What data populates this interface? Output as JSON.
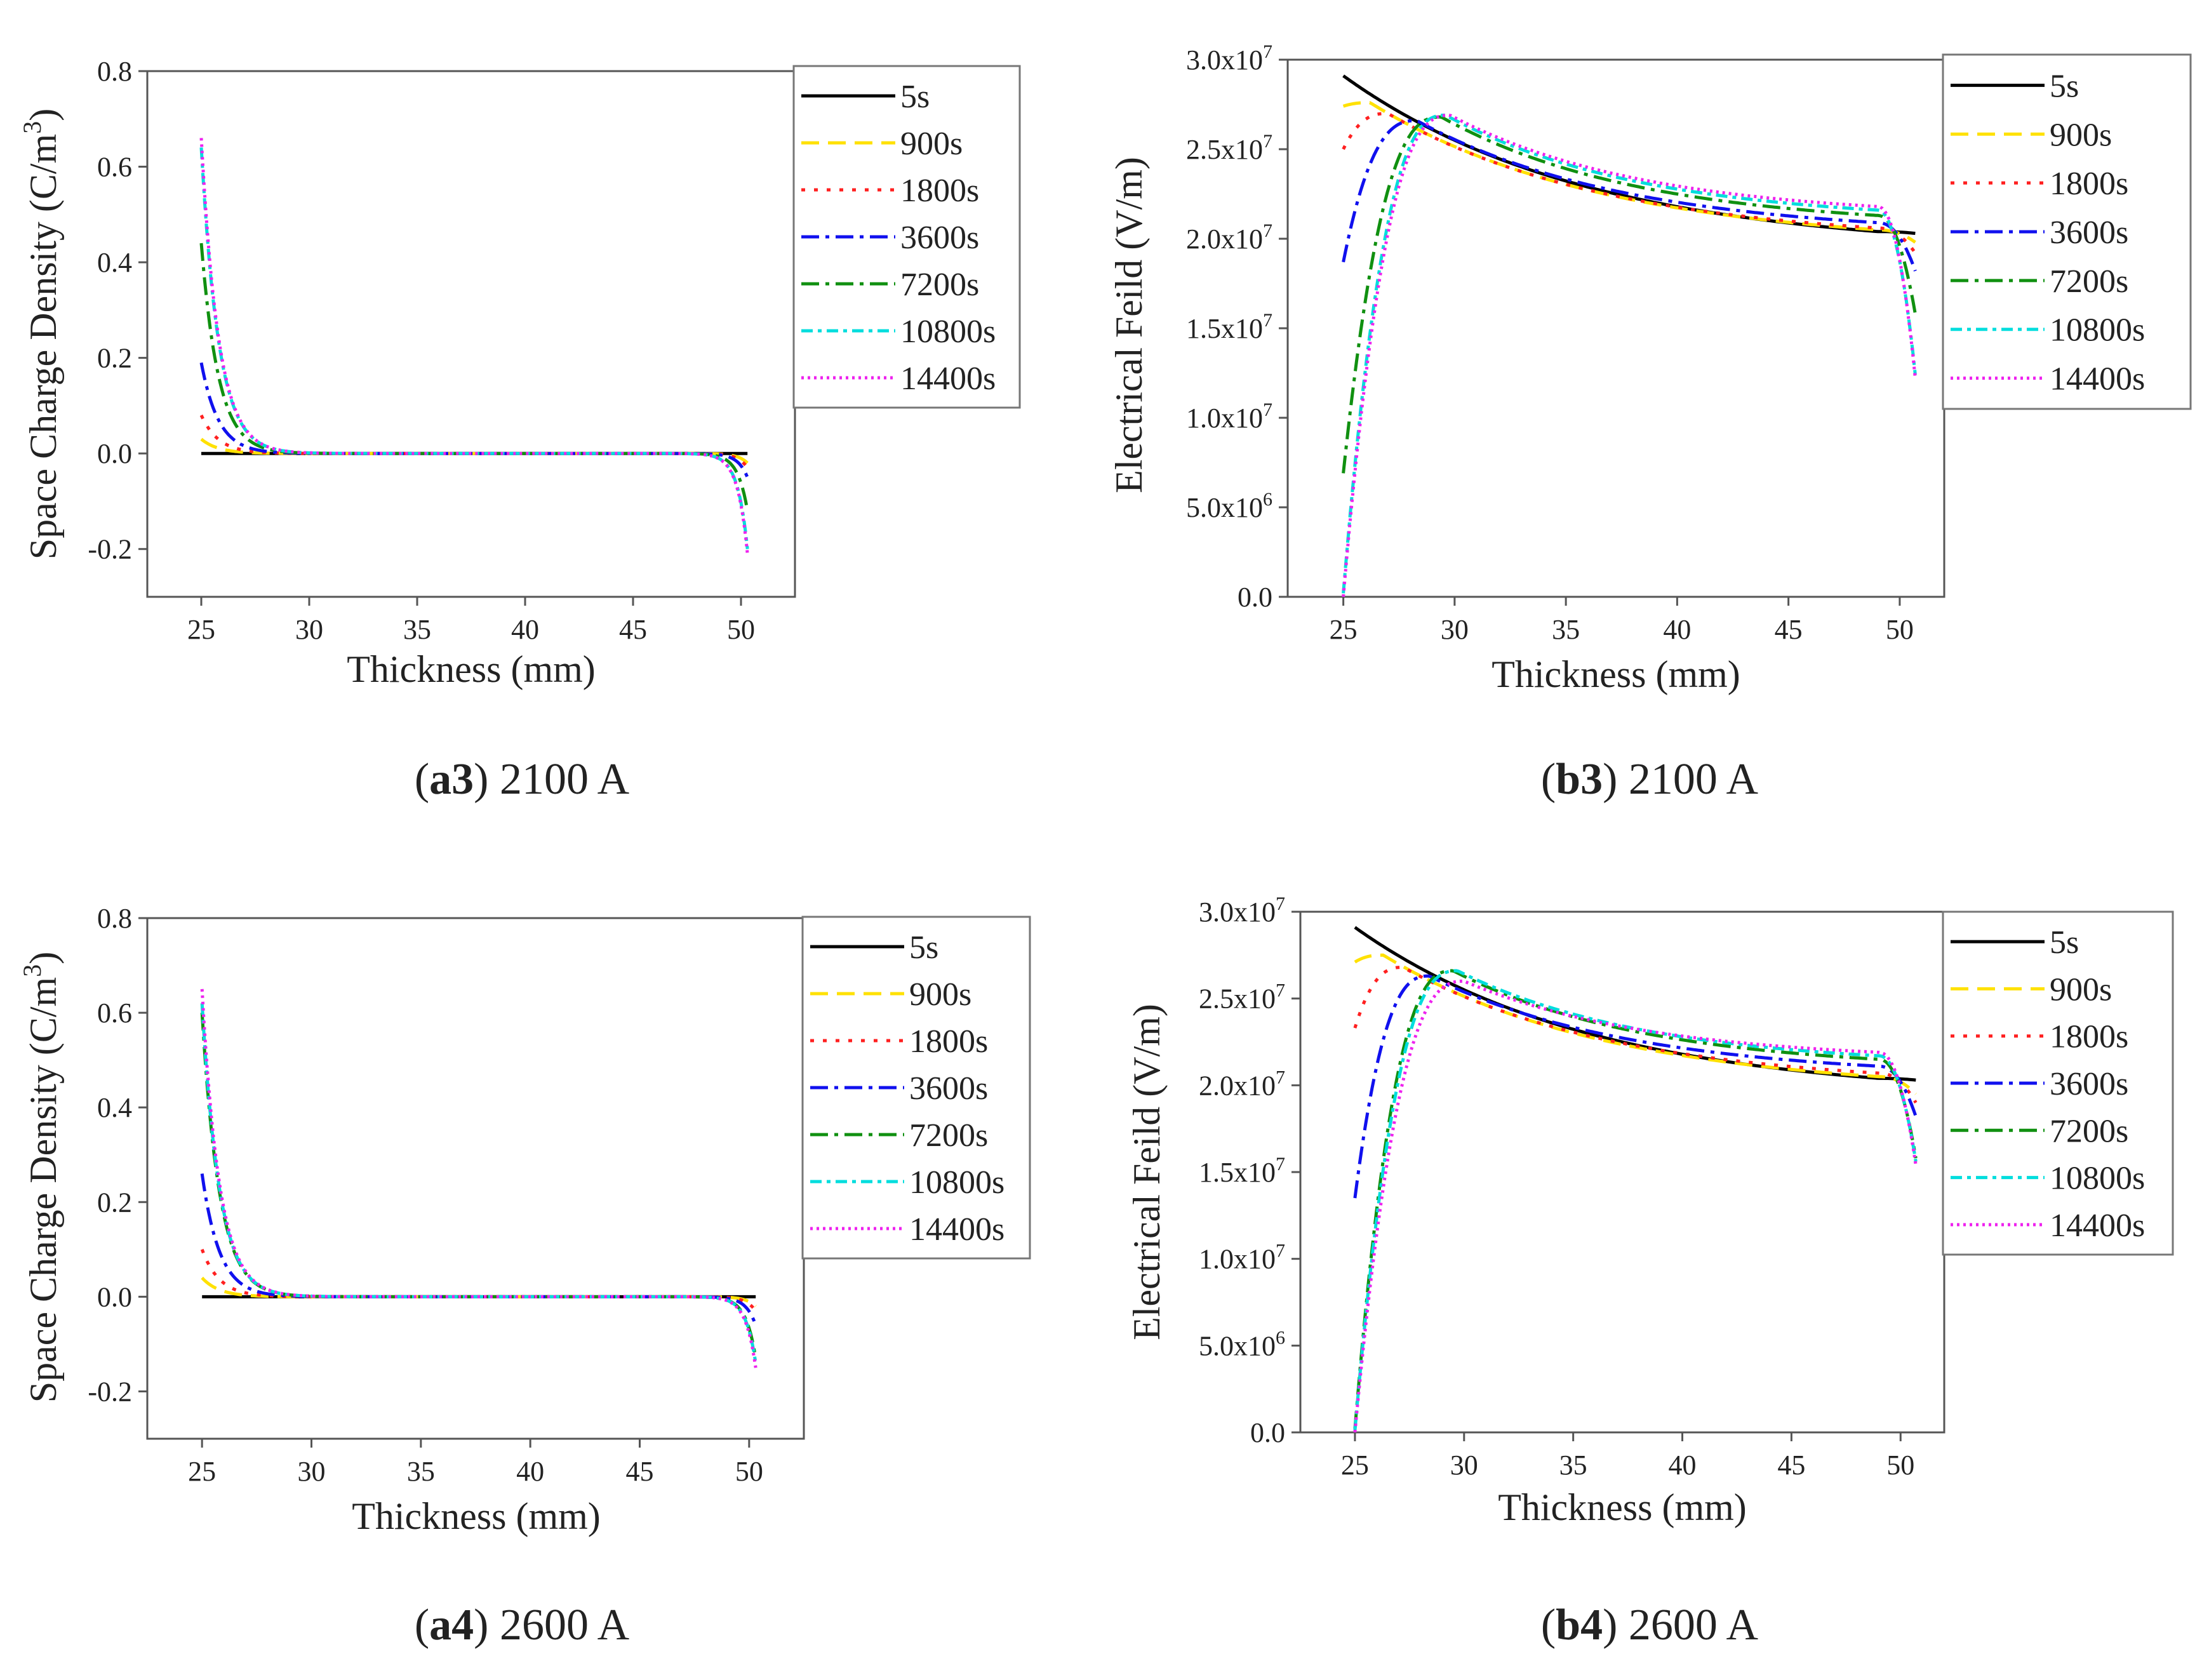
{
  "chart_data": [
    {
      "id": "a3",
      "type": "line",
      "caption_label": "a3",
      "caption_text": "2100 A",
      "xlabel": "Thickness (mm)",
      "ylabel": "Space Charge Density (C/m",
      "ylabel_sup": "3",
      "ylabel_end": ")",
      "xlim": [
        22.5,
        52.5
      ],
      "ylim": [
        -0.3,
        0.8
      ],
      "xticks": [
        "25",
        "30",
        "35",
        "40",
        "45",
        "50"
      ],
      "yticks": [
        "-0.2",
        "0.0",
        "0.2",
        "0.4",
        "0.6",
        "0.8"
      ],
      "series": [
        {
          "name": "5s",
          "color": "#000000",
          "dash": "",
          "peak_left": 0.0,
          "peak_right": 0.0
        },
        {
          "name": "900s",
          "color": "#ffe100",
          "dash": "28,14",
          "peak_left": 0.03,
          "peak_right": -0.02
        },
        {
          "name": "1800s",
          "color": "#ff2020",
          "dash": "6,14",
          "peak_left": 0.08,
          "peak_right": -0.03
        },
        {
          "name": "3600s",
          "color": "#1010ee",
          "dash": "28,10,6,10",
          "peak_left": 0.19,
          "peak_right": -0.05
        },
        {
          "name": "7200s",
          "color": "#109010",
          "dash": "28,10,6,10",
          "peak_left": 0.44,
          "peak_right": -0.12
        },
        {
          "name": "10800s",
          "color": "#00dddd",
          "dash": "18,8,6,8",
          "peak_left": 0.64,
          "peak_right": -0.2
        },
        {
          "name": "14400s",
          "color": "#ee22ee",
          "dash": "4,6",
          "peak_left": 0.66,
          "peak_right": -0.21
        }
      ]
    },
    {
      "id": "b3",
      "type": "line",
      "caption_label": "b3",
      "caption_text": "2100 A",
      "xlabel": "Thickness (mm)",
      "ylabel": "Electrical Feild (V/m)",
      "xlim": [
        22.5,
        52
      ],
      "ylim": [
        0,
        30000000.0
      ],
      "xticks": [
        "25",
        "30",
        "35",
        "40",
        "45",
        "50"
      ],
      "ytick_values": [
        0,
        5000000.0,
        10000000.0,
        15000000.0,
        20000000.0,
        25000000.0,
        30000000.0
      ],
      "yticks": [
        {
          "plain": "0.0"
        },
        {
          "mant": "5.0x10",
          "exp": "6"
        },
        {
          "mant": "1.0x10",
          "exp": "7"
        },
        {
          "mant": "1.5x10",
          "exp": "7"
        },
        {
          "mant": "2.0x10",
          "exp": "7"
        },
        {
          "mant": "2.5x10",
          "exp": "7"
        },
        {
          "mant": "3.0x10",
          "exp": "7"
        }
      ],
      "series": [
        {
          "name": "5s",
          "color": "#000000",
          "dash": "",
          "start": 29100000.0,
          "x_peak": 25.0,
          "peak": 29100000.0,
          "at_49": 20400000.0,
          "end": 20300000.0
        },
        {
          "name": "900s",
          "color": "#ffe100",
          "dash": "28,14",
          "start": 27400000.0,
          "x_peak": 26.2,
          "peak": 27600000.0,
          "at_49": 20500000.0,
          "end": 19800000.0
        },
        {
          "name": "1800s",
          "color": "#ff2020",
          "dash": "6,14",
          "start": 25000000.0,
          "x_peak": 27.0,
          "peak": 27000000.0,
          "at_49": 20600000.0,
          "end": 19200000.0
        },
        {
          "name": "3600s",
          "color": "#1010ee",
          "dash": "28,10,6,10",
          "start": 18700000.0,
          "x_peak": 28.3,
          "peak": 26600000.0,
          "at_49": 20900000.0,
          "end": 18200000.0
        },
        {
          "name": "7200s",
          "color": "#109010",
          "dash": "28,10,6,10",
          "start": 6900000.0,
          "x_peak": 29.4,
          "peak": 26800000.0,
          "at_49": 21300000.0,
          "end": 15800000.0
        },
        {
          "name": "10800s",
          "color": "#00dddd",
          "dash": "18,8,6,8",
          "start": 200000.0,
          "x_peak": 29.6,
          "peak": 26900000.0,
          "at_49": 21600000.0,
          "end": 12400000.0
        },
        {
          "name": "14400s",
          "color": "#ee22ee",
          "dash": "4,6",
          "start": 0,
          "x_peak": 29.8,
          "peak": 26900000.0,
          "at_49": 21800000.0,
          "end": 12200000.0
        }
      ]
    },
    {
      "id": "a4",
      "type": "line",
      "caption_label": "a4",
      "caption_text": "2600 A",
      "xlabel": "Thickness (mm)",
      "ylabel": "Space Charge Density (C/m",
      "ylabel_sup": "3",
      "ylabel_end": ")",
      "xlim": [
        22.5,
        52.5
      ],
      "ylim": [
        -0.3,
        0.8
      ],
      "xticks": [
        "25",
        "30",
        "35",
        "40",
        "45",
        "50"
      ],
      "yticks": [
        "-0.2",
        "0.0",
        "0.2",
        "0.4",
        "0.6",
        "0.8"
      ],
      "series": [
        {
          "name": "5s",
          "color": "#000000",
          "dash": "",
          "peak_left": 0.0,
          "peak_right": 0.0
        },
        {
          "name": "900s",
          "color": "#ffe100",
          "dash": "28,14",
          "peak_left": 0.04,
          "peak_right": -0.02
        },
        {
          "name": "1800s",
          "color": "#ff2020",
          "dash": "6,14",
          "peak_left": 0.1,
          "peak_right": -0.03
        },
        {
          "name": "3600s",
          "color": "#1010ee",
          "dash": "28,10,6,10",
          "peak_left": 0.26,
          "peak_right": -0.06
        },
        {
          "name": "7200s",
          "color": "#109010",
          "dash": "28,10,6,10",
          "peak_left": 0.6,
          "peak_right": -0.13
        },
        {
          "name": "10800s",
          "color": "#00dddd",
          "dash": "18,8,6,8",
          "peak_left": 0.62,
          "peak_right": -0.14
        },
        {
          "name": "14400s",
          "color": "#ee22ee",
          "dash": "4,6",
          "peak_left": 0.65,
          "peak_right": -0.15
        }
      ]
    },
    {
      "id": "b4",
      "type": "line",
      "caption_label": "b4",
      "caption_text": "2600 A",
      "xlabel": "Thickness (mm)",
      "ylabel": "Electrical Feild (V/m)",
      "xlim": [
        22.5,
        52
      ],
      "ylim": [
        0,
        30000000.0
      ],
      "xticks": [
        "25",
        "30",
        "35",
        "40",
        "45",
        "50"
      ],
      "ytick_values": [
        0,
        5000000.0,
        10000000.0,
        15000000.0,
        20000000.0,
        25000000.0,
        30000000.0
      ],
      "yticks": [
        {
          "plain": "0.0"
        },
        {
          "mant": "5.0x10",
          "exp": "6"
        },
        {
          "mant": "1.0x10",
          "exp": "7"
        },
        {
          "mant": "1.5x10",
          "exp": "7"
        },
        {
          "mant": "2.0x10",
          "exp": "7"
        },
        {
          "mant": "2.5x10",
          "exp": "7"
        },
        {
          "mant": "3.0x10",
          "exp": "7"
        }
      ],
      "series": [
        {
          "name": "5s",
          "color": "#000000",
          "dash": "",
          "start": 29100000.0,
          "x_peak": 25.0,
          "peak": 29100000.0,
          "at_49": 20400000.0,
          "end": 20300000.0
        },
        {
          "name": "900s",
          "color": "#ffe100",
          "dash": "28,14",
          "start": 27100000.0,
          "x_peak": 26.3,
          "peak": 27500000.0,
          "at_49": 20500000.0,
          "end": 19500000.0
        },
        {
          "name": "1800s",
          "color": "#ff2020",
          "dash": "6,14",
          "start": 23300000.0,
          "x_peak": 27.2,
          "peak": 26800000.0,
          "at_49": 20700000.0,
          "end": 19000000.0
        },
        {
          "name": "3600s",
          "color": "#1010ee",
          "dash": "28,10,6,10",
          "start": 13500000.0,
          "x_peak": 28.4,
          "peak": 26300000.0,
          "at_49": 21100000.0,
          "end": 18200000.0
        },
        {
          "name": "7200s",
          "color": "#109010",
          "dash": "28,10,6,10",
          "start": 200000.0,
          "x_peak": 29.5,
          "peak": 26600000.0,
          "at_49": 21500000.0,
          "end": 15800000.0
        },
        {
          "name": "10800s",
          "color": "#00dddd",
          "dash": "18,8,6,8",
          "start": 100000.0,
          "x_peak": 29.7,
          "peak": 26600000.0,
          "at_49": 21700000.0,
          "end": 15600000.0
        },
        {
          "name": "14400s",
          "color": "#ee22ee",
          "dash": "4,6",
          "start": 0,
          "x_peak": 30.0,
          "peak": 26000000.0,
          "at_49": 21900000.0,
          "end": 15400000.0
        }
      ]
    }
  ]
}
